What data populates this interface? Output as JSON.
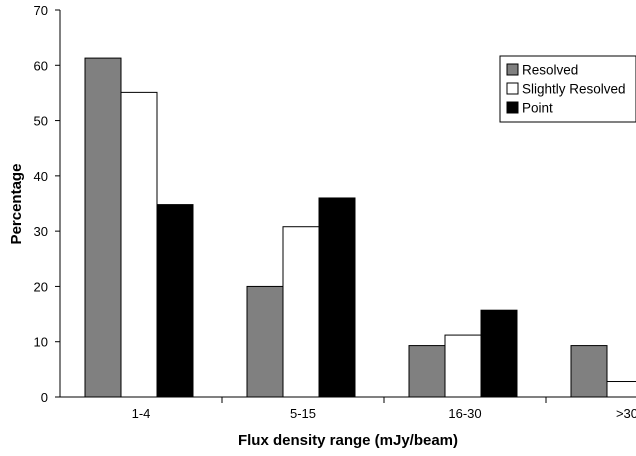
{
  "chart_data": {
    "type": "bar",
    "title": "",
    "xlabel": "Flux density range (mJy/beam)",
    "ylabel": "Percentage",
    "ylim": [
      0,
      70
    ],
    "yticks": [
      "0",
      "10",
      "20",
      "30",
      "40",
      "50",
      "60",
      "70"
    ],
    "categories": [
      "1-4",
      "5-15",
      "16-30",
      ">30"
    ],
    "series": [
      {
        "name": "Resolved",
        "color": "#808080",
        "values": [
          61.3,
          20.0,
          9.3,
          9.3
        ]
      },
      {
        "name": "Slightly Resolved",
        "color": "#ffffff",
        "values": [
          55.1,
          30.8,
          11.2,
          2.8
        ]
      },
      {
        "name": "Point",
        "color": "#000000",
        "values": [
          34.8,
          36.0,
          15.7,
          0
        ]
      }
    ],
    "legend_position": "top-right",
    "grid": false
  }
}
